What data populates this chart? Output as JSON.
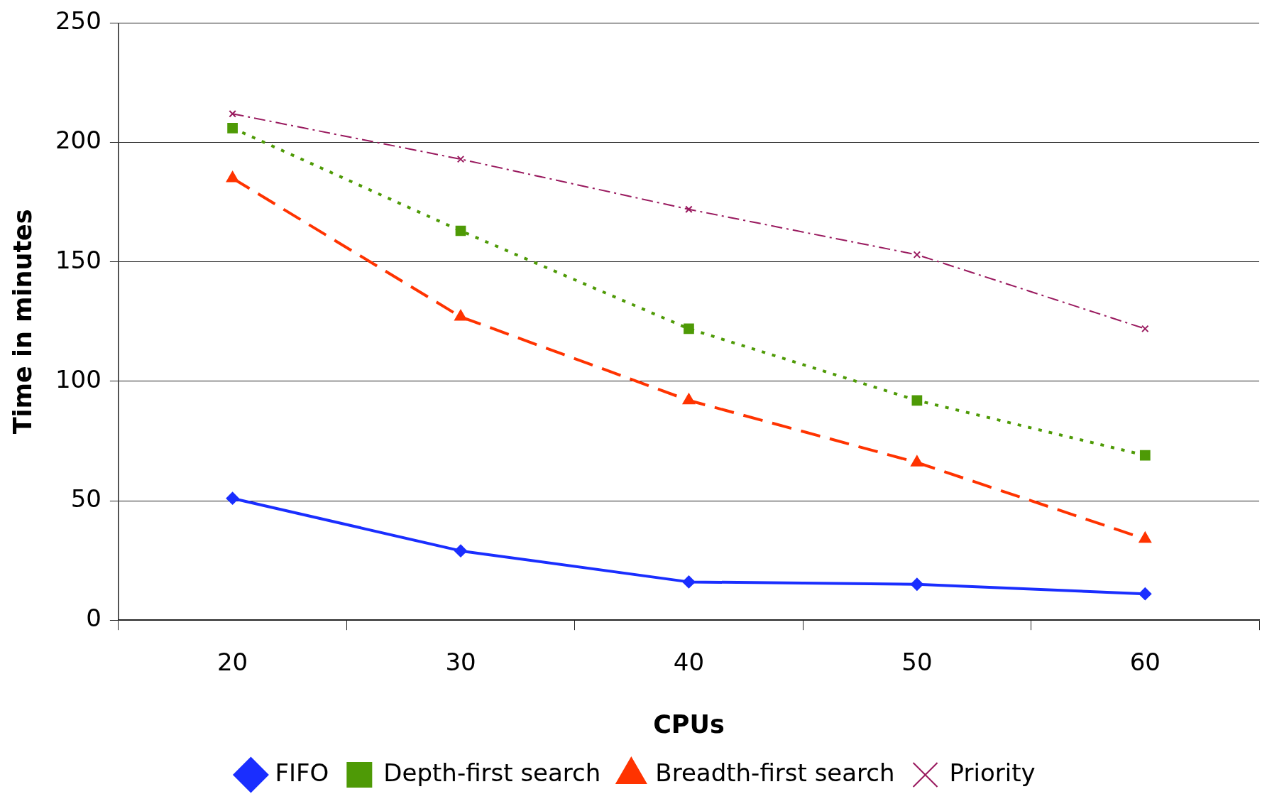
{
  "chart_data": {
    "type": "line",
    "xlabel": "CPUs",
    "ylabel": "Time in minutes",
    "categories": [
      "20",
      "30",
      "40",
      "50",
      "60"
    ],
    "ylim": [
      0,
      250
    ],
    "yticks": [
      0,
      50,
      100,
      150,
      200,
      250
    ],
    "grid": "y",
    "legend": "bottom",
    "series": [
      {
        "name": "FIFO",
        "color": "#1a2eff",
        "marker": "diamond",
        "line_style": "solid",
        "values": [
          51,
          29,
          16,
          15,
          11
        ]
      },
      {
        "name": "Depth-first search",
        "color": "#4e9a06",
        "marker": "square",
        "line_style": "dotted",
        "values": [
          206,
          163,
          122,
          92,
          69
        ]
      },
      {
        "name": "Breadth-first search",
        "color": "#ff3300",
        "marker": "triangle",
        "line_style": "dashed",
        "values": [
          185,
          127,
          92,
          66,
          34
        ]
      },
      {
        "name": "Priority",
        "color": "#99195e",
        "marker": "cross",
        "line_style": "dashdot",
        "values": [
          212,
          193,
          172,
          153,
          122
        ]
      }
    ]
  }
}
